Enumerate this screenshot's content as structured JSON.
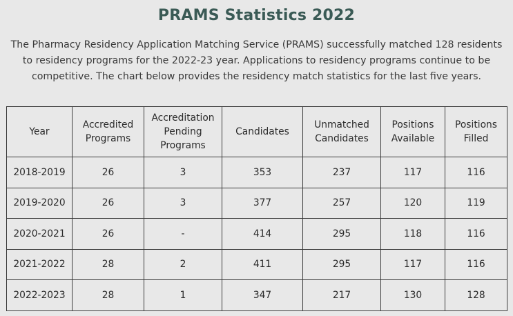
{
  "page": {
    "title": "PRAMS Statistics 2022",
    "intro": "The Pharmacy Residency Application Matching Service (PRAMS) successfully matched 128 residents to residency programs for the 2022-23 year. Applications to residency programs continue to be competitive. The chart below provides the residency match statistics for the last five years."
  },
  "table": {
    "headers": [
      "Year",
      "Accredited Programs",
      "Accreditation Pending Programs",
      "Candidates",
      "Unmatched Candidates",
      "Positions Available",
      "Positions Filled"
    ],
    "rows": [
      [
        "2018-2019",
        "26",
        "3",
        "353",
        "237",
        "117",
        "116"
      ],
      [
        "2019-2020",
        "26",
        "3",
        "377",
        "257",
        "120",
        "119"
      ],
      [
        "2020-2021",
        "26",
        "-",
        "414",
        "295",
        "118",
        "116"
      ],
      [
        "2021-2022",
        "28",
        "2",
        "411",
        "295",
        "117",
        "116"
      ],
      [
        "2022-2023",
        "28",
        "1",
        "347",
        "217",
        "130",
        "128"
      ]
    ]
  }
}
